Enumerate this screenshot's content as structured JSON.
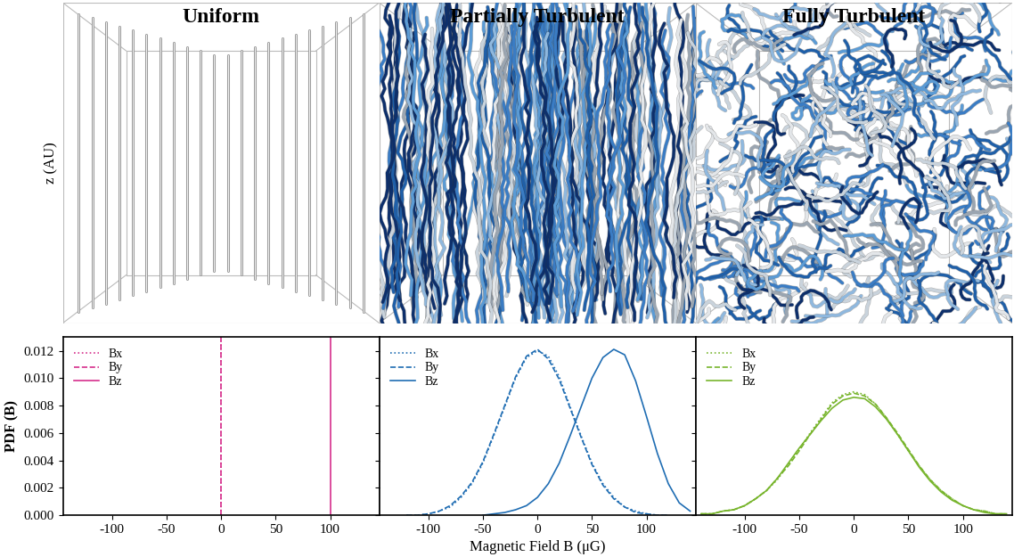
{
  "illustrations": {
    "y_label": "z (AU)",
    "panels": [
      {
        "title": "Uniform"
      },
      {
        "title": "Partially Turbulent"
      },
      {
        "title": "Fully Turbulent"
      }
    ]
  },
  "chart_data": [
    {
      "type": "line",
      "color": "#d62f8c",
      "legend": "upper left",
      "y_label": "PDF (B)",
      "xlim": [
        -145,
        145
      ],
      "xticks": [
        -100,
        -50,
        0,
        50,
        100
      ],
      "ylim": [
        0,
        0.013
      ],
      "yticks": [
        {
          "value": 0,
          "label": "0.000"
        },
        {
          "value": 0.002,
          "label": "0.002"
        },
        {
          "value": 0.004,
          "label": "0.004"
        },
        {
          "value": 0.006,
          "label": "0.006"
        },
        {
          "value": 0.008,
          "label": "0.008"
        },
        {
          "value": 0.01,
          "label": "0.010"
        },
        {
          "value": 0.012,
          "label": "0.012"
        }
      ],
      "series": [
        {
          "name": "Bx",
          "type": "vline",
          "line_style": "dotted",
          "x": 0
        },
        {
          "name": "By",
          "type": "vline",
          "line_style": "dashed",
          "x": 0
        },
        {
          "name": "Bz",
          "type": "vline",
          "line_style": "solid",
          "x": 100
        }
      ]
    },
    {
      "type": "line",
      "color": "#1f6db3",
      "legend": "upper left",
      "tick_labels": "x",
      "x_label": "Magnetic Field B (μG)",
      "xlim": [
        -145,
        145
      ],
      "xticks": [
        -100,
        -50,
        0,
        50,
        100
      ],
      "ylim": [
        0,
        0.013
      ],
      "yticks": [
        {
          "value": 0,
          "label": "0.000"
        },
        {
          "value": 0.002,
          "label": "0.002"
        },
        {
          "value": 0.004,
          "label": "0.004"
        },
        {
          "value": 0.006,
          "label": "0.006"
        },
        {
          "value": 0.008,
          "label": "0.008"
        },
        {
          "value": 0.01,
          "label": "0.010"
        },
        {
          "value": 0.012,
          "label": "0.012"
        }
      ],
      "series": [
        {
          "name": "Bx",
          "line_style": "dotted",
          "x": [
            -120,
            -110,
            -100,
            -90,
            -80,
            -70,
            -60,
            -50,
            -40,
            -30,
            -20,
            -10,
            0,
            10,
            20,
            30,
            40,
            50,
            60,
            70,
            80,
            90,
            100,
            110,
            120
          ],
          "values": [
            0.0,
            0.0,
            0.0001,
            0.0003,
            0.0006,
            0.0013,
            0.0023,
            0.0038,
            0.0058,
            0.0079,
            0.01,
            0.0115,
            0.012,
            0.0116,
            0.0101,
            0.0079,
            0.0058,
            0.0038,
            0.0023,
            0.0013,
            0.0006,
            0.0003,
            0.0001,
            0.0,
            0.0
          ]
        },
        {
          "name": "By",
          "line_style": "dashed",
          "x": [
            -120,
            -110,
            -100,
            -90,
            -80,
            -70,
            -60,
            -50,
            -40,
            -30,
            -20,
            -10,
            0,
            10,
            20,
            30,
            40,
            50,
            60,
            70,
            80,
            90,
            100,
            110,
            120
          ],
          "values": [
            0.0,
            0.0,
            0.0001,
            0.0003,
            0.0007,
            0.0014,
            0.0024,
            0.0039,
            0.0059,
            0.008,
            0.0101,
            0.0116,
            0.0121,
            0.0114,
            0.0099,
            0.0078,
            0.0057,
            0.0037,
            0.0022,
            0.0012,
            0.0006,
            0.0002,
            0.0001,
            0.0,
            0.0
          ]
        },
        {
          "name": "Bz",
          "line_style": "solid",
          "x": [
            -50,
            -40,
            -30,
            -20,
            -10,
            0,
            10,
            20,
            30,
            40,
            50,
            60,
            70,
            80,
            90,
            100,
            110,
            120,
            130,
            140
          ],
          "values": [
            0.0,
            0.0001,
            0.0002,
            0.0004,
            0.0007,
            0.0013,
            0.0023,
            0.0038,
            0.0058,
            0.0079,
            0.01,
            0.0115,
            0.0121,
            0.0117,
            0.0098,
            0.0072,
            0.0045,
            0.0023,
            0.0009,
            0.0003
          ]
        }
      ]
    },
    {
      "type": "line",
      "color": "#78b52d",
      "legend": "upper left",
      "tick_labels": "x",
      "xlim": [
        -145,
        145
      ],
      "xticks": [
        -100,
        -50,
        0,
        50,
        100
      ],
      "ylim": [
        0,
        0.013
      ],
      "yticks": [
        {
          "value": 0,
          "label": "0.000"
        },
        {
          "value": 0.002,
          "label": "0.002"
        },
        {
          "value": 0.004,
          "label": "0.004"
        },
        {
          "value": 0.006,
          "label": "0.006"
        },
        {
          "value": 0.008,
          "label": "0.008"
        },
        {
          "value": 0.01,
          "label": "0.010"
        },
        {
          "value": 0.012,
          "label": "0.012"
        }
      ],
      "series": [
        {
          "name": "Bx",
          "line_style": "dotted",
          "x": [
            -140,
            -130,
            -120,
            -110,
            -100,
            -90,
            -80,
            -70,
            -60,
            -50,
            -40,
            -30,
            -20,
            -10,
            0,
            10,
            20,
            30,
            40,
            50,
            60,
            70,
            80,
            90,
            100,
            110,
            120,
            130,
            140
          ],
          "values": [
            0.0001,
            0.0001,
            0.0003,
            0.0004,
            0.0007,
            0.0012,
            0.0018,
            0.0026,
            0.0037,
            0.0048,
            0.006,
            0.0071,
            0.0082,
            0.0088,
            0.009,
            0.0088,
            0.0081,
            0.0071,
            0.0059,
            0.0047,
            0.0036,
            0.0026,
            0.0018,
            0.0012,
            0.0007,
            0.0004,
            0.0003,
            0.0001,
            0.0001
          ]
        },
        {
          "name": "By",
          "line_style": "dashed",
          "x": [
            -140,
            -130,
            -120,
            -110,
            -100,
            -90,
            -80,
            -70,
            -60,
            -50,
            -40,
            -30,
            -20,
            -10,
            0,
            10,
            20,
            30,
            40,
            50,
            60,
            70,
            80,
            90,
            100,
            110,
            120,
            130,
            140
          ],
          "values": [
            0.0001,
            0.0001,
            0.0003,
            0.0004,
            0.0007,
            0.0012,
            0.0018,
            0.0027,
            0.0036,
            0.0047,
            0.0059,
            0.007,
            0.0081,
            0.0087,
            0.0089,
            0.0087,
            0.0081,
            0.0071,
            0.006,
            0.0048,
            0.0036,
            0.0026,
            0.0018,
            0.0012,
            0.0007,
            0.0004,
            0.0003,
            0.0001,
            0.0001
          ]
        },
        {
          "name": "Bz",
          "line_style": "solid",
          "x": [
            -140,
            -130,
            -120,
            -110,
            -100,
            -90,
            -80,
            -70,
            -60,
            -50,
            -40,
            -30,
            -20,
            -10,
            0,
            10,
            20,
            30,
            40,
            50,
            60,
            70,
            80,
            90,
            100,
            110,
            120,
            130,
            140
          ],
          "values": [
            0.0001,
            0.0001,
            0.0003,
            0.0004,
            0.0007,
            0.0012,
            0.0018,
            0.0027,
            0.0038,
            0.0049,
            0.0059,
            0.0069,
            0.0078,
            0.0084,
            0.0086,
            0.0085,
            0.0079,
            0.007,
            0.0059,
            0.0047,
            0.0035,
            0.0025,
            0.0017,
            0.0011,
            0.0007,
            0.0004,
            0.0002,
            0.0001,
            0.0001
          ]
        }
      ]
    }
  ]
}
